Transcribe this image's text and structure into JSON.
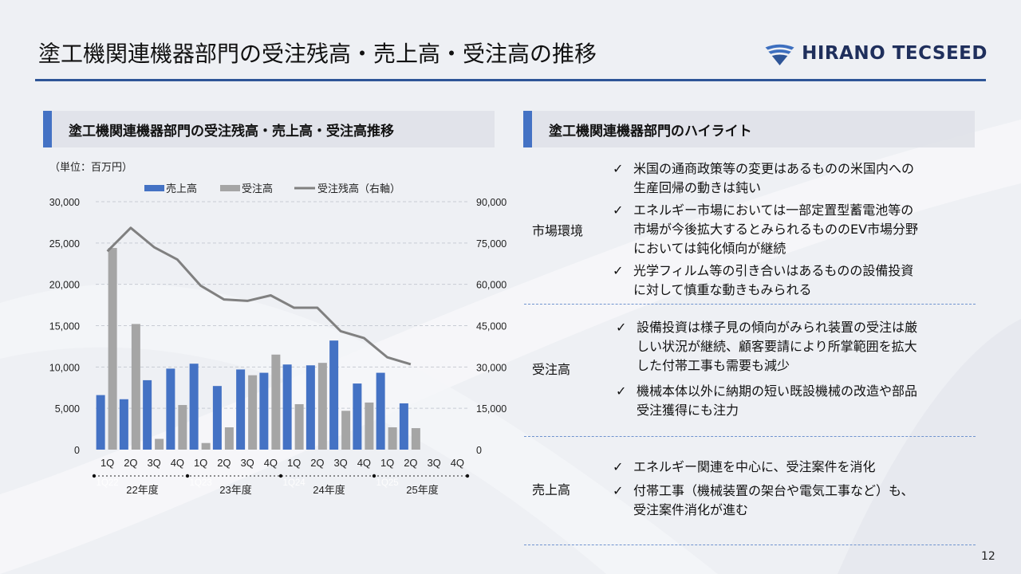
{
  "page": {
    "title": "塗工機関連機器部門の受注残高・売上高・受注高の推移",
    "page_number": "12",
    "accent_color": "#2e5597"
  },
  "logo": {
    "text": "HIRANO TECSEED",
    "icon": "company-emblem-icon"
  },
  "chart_section": {
    "heading": "塗工機関連機器部門の受注残高・売上高・受注高推移"
  },
  "highlights_section": {
    "heading": "塗工機関連機器部門のハイライト",
    "check_symbol": "✓",
    "rows": [
      {
        "label": "市場環境",
        "items": [
          [
            "米国の通商政策等の変更はあるものの米国内への",
            "生産回帰の動きは鈍い"
          ],
          [
            "エネルギー市場においては一部定置型蓄電池等の",
            "市場が今後拡大するとみられるもののEV市場分野",
            "においては鈍化傾向が継続"
          ],
          [
            "光学フィルム等の引き合いはあるものの設備投資",
            "に対して慎重な動きもみられる"
          ]
        ]
      },
      {
        "label": "受注高",
        "items": [
          [
            "設備投資は様子見の傾向がみられ装置の受注は厳",
            "しい状況が継続、顧客要請により所掌範囲を拡大",
            "した付帯工事も需要も減少"
          ],
          [
            "機械本体以外に納期の短い既設機械の改造や部品",
            "受注獲得にも注力"
          ]
        ]
      },
      {
        "label": "売上高",
        "items": [
          [
            "エネルギー関連を中心に、受注案件を消化"
          ],
          [
            "付帯工事（機械装置の架台や電気工事など）も、",
            "受注案件消化が進む"
          ]
        ]
      }
    ]
  },
  "chart_data": {
    "type": "bar",
    "unit_label": "（単位：百万円）",
    "categories": [
      "1Q",
      "2Q",
      "3Q",
      "4Q",
      "1Q",
      "2Q",
      "3Q",
      "4Q",
      "1Q",
      "2Q",
      "3Q",
      "4Q",
      "1Q",
      "2Q",
      "3Q",
      "4Q"
    ],
    "fiscal_years": [
      "22年度",
      "23年度",
      "24年度",
      "25年度"
    ],
    "watermark_labels": [
      "1Q22",
      "1Q23",
      "1Q24",
      "1Q25"
    ],
    "series": [
      {
        "name": "売上高",
        "kind": "bar",
        "axis": "left",
        "color": "#4472c4",
        "values": [
          6600,
          6100,
          8400,
          9800,
          10400,
          7700,
          9700,
          9300,
          10300,
          10200,
          13200,
          8000,
          9300,
          5600,
          null,
          null
        ]
      },
      {
        "name": "受注高",
        "kind": "bar",
        "axis": "left",
        "color": "#a5a5a5",
        "values": [
          24400,
          15200,
          1300,
          5400,
          800,
          2700,
          9000,
          11500,
          5500,
          10500,
          4700,
          5700,
          2700,
          2600,
          null,
          null
        ]
      },
      {
        "name": "受注残高（右軸）",
        "kind": "line",
        "axis": "right",
        "color": "#808080",
        "values": [
          72000,
          80500,
          73500,
          69000,
          59500,
          54500,
          54000,
          56000,
          51500,
          51500,
          43000,
          40500,
          33500,
          31000,
          null,
          null
        ]
      }
    ],
    "y_left": {
      "min": 0,
      "max": 30000,
      "ticks": [
        "0",
        "5,000",
        "10,000",
        "15,000",
        "20,000",
        "25,000",
        "30,000"
      ]
    },
    "y_right": {
      "min": 0,
      "max": 90000,
      "ticks": [
        "0",
        "15,000",
        "30,000",
        "45,000",
        "60,000",
        "75,000",
        "90,000"
      ]
    },
    "grid": true,
    "legend_position": "top"
  }
}
